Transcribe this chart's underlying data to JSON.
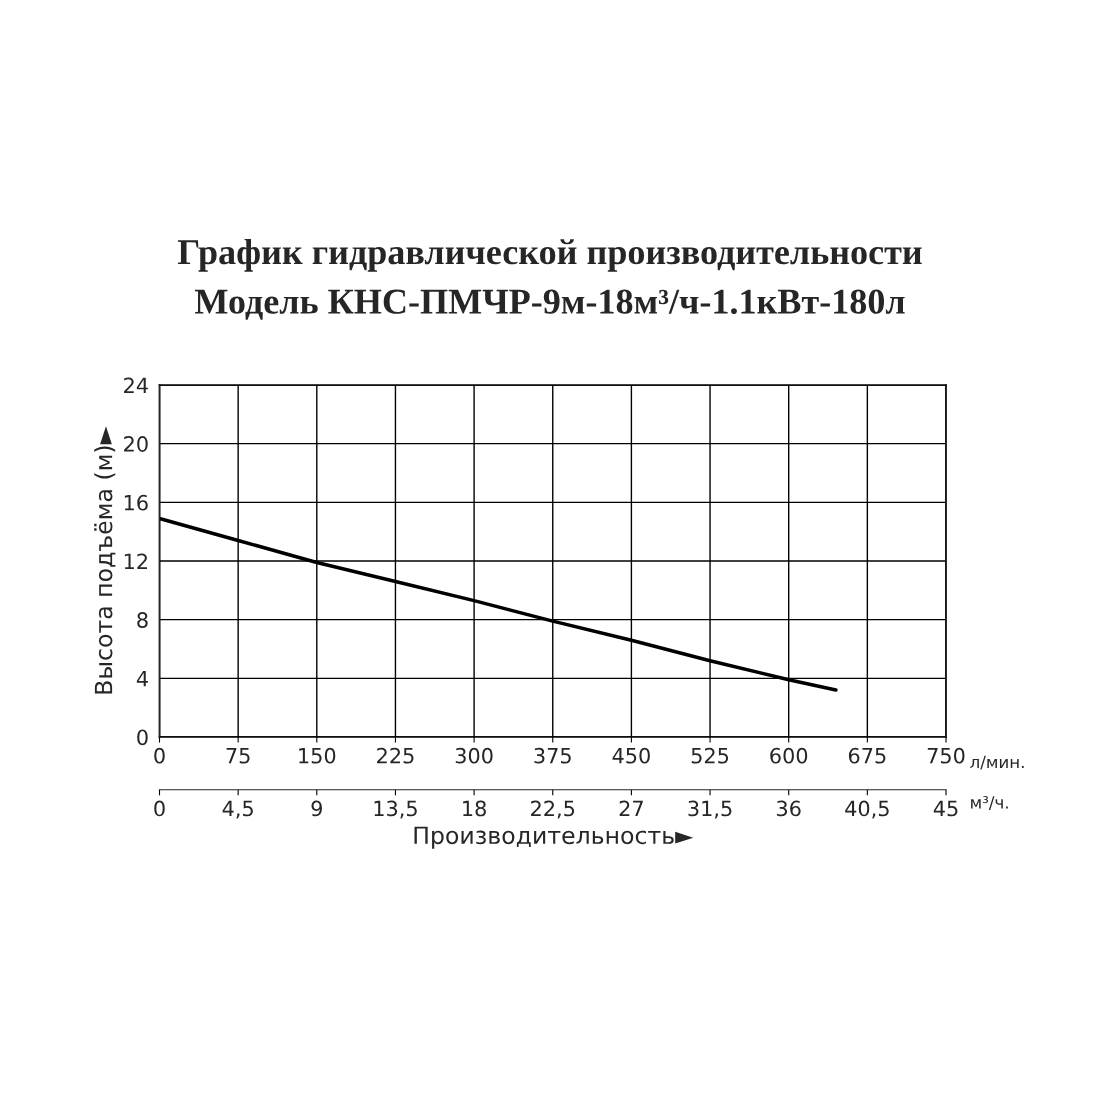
{
  "chart_data": {
    "type": "line",
    "title": "График гидравлической производительности",
    "subtitle": "Модель КНС-ПМЧР-9м-18м³/ч-1.1кВт-180л",
    "xlabel": "Производительность►",
    "ylabel": "Высота подъёма (м)►",
    "x": [
      0,
      75,
      150,
      225,
      300,
      375,
      450,
      525,
      600,
      645
    ],
    "series": [
      {
        "color": "#000000",
        "values": [
          14.9,
          13.4,
          11.9,
          10.6,
          9.3,
          7.9,
          6.6,
          5.2,
          3.9,
          3.2
        ]
      }
    ],
    "xlim": [
      0,
      750
    ],
    "xticks": [
      0,
      75,
      150,
      225,
      300,
      375,
      450,
      525,
      600,
      675,
      750
    ],
    "x2lim": [
      0,
      45
    ],
    "x2ticks": [
      0,
      {
        "value": 4.5,
        "label": "4,5"
      },
      9,
      {
        "value": 13.5,
        "label": "13,5"
      },
      18,
      {
        "value": 22.5,
        "label": "22,5"
      },
      27,
      {
        "value": 31.5,
        "label": "31,5"
      },
      36,
      {
        "value": 40.5,
        "label": "40,5"
      },
      45
    ],
    "ylim": [
      0,
      24
    ],
    "yticks": [
      0,
      4,
      8,
      12,
      16,
      20,
      24
    ],
    "annotations": [
      "л/мин.",
      "м³/ч."
    ],
    "grid": true,
    "line_style": "solid"
  }
}
